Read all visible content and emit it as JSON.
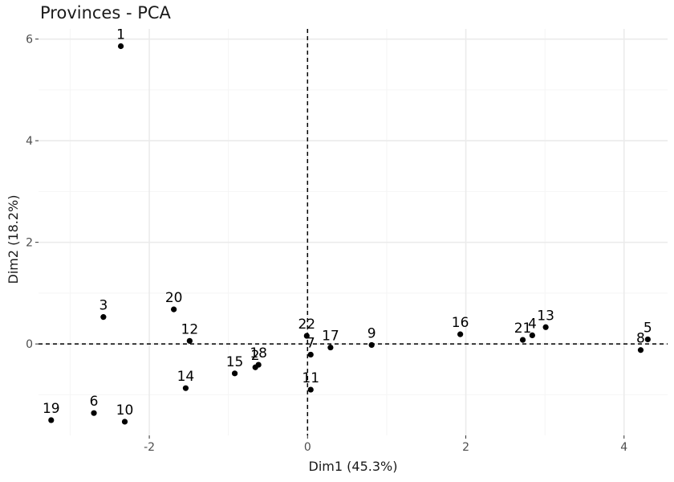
{
  "chart_data": {
    "type": "scatter",
    "title": "Provinces - PCA",
    "xlabel": "Dim1 (45.3%)",
    "ylabel": "Dim2 (18.2%)",
    "xlim": [
      -3.4,
      4.55
    ],
    "ylim": [
      -1.8,
      6.2
    ],
    "x_ticks": [
      -2,
      0,
      2,
      4
    ],
    "y_ticks": [
      0,
      2,
      4,
      6
    ],
    "x_tick_labels": [
      "-2",
      "0",
      "2",
      "4"
    ],
    "y_tick_labels": [
      "0",
      "2",
      "4",
      "6"
    ],
    "grid": true,
    "reference_lines": {
      "x": 0,
      "y": 0,
      "style": "dashed"
    },
    "colors": {
      "point": "#000000",
      "grid_major": "#ebebeb",
      "grid_minor": "#f5f5f5"
    },
    "points": [
      {
        "label": "1",
        "x": -2.36,
        "y": 5.86
      },
      {
        "label": "2",
        "x": -0.66,
        "y": -0.46
      },
      {
        "label": "3",
        "x": -2.58,
        "y": 0.53
      },
      {
        "label": "4",
        "x": 2.84,
        "y": 0.17
      },
      {
        "label": "5",
        "x": 4.3,
        "y": 0.09
      },
      {
        "label": "6",
        "x": -2.7,
        "y": -1.36
      },
      {
        "label": "7",
        "x": 0.04,
        "y": -0.21
      },
      {
        "label": "8",
        "x": 4.21,
        "y": -0.12
      },
      {
        "label": "9",
        "x": 0.81,
        "y": -0.02
      },
      {
        "label": "10",
        "x": -2.31,
        "y": -1.53
      },
      {
        "label": "11",
        "x": 0.04,
        "y": -0.9
      },
      {
        "label": "12",
        "x": -1.49,
        "y": 0.06
      },
      {
        "label": "13",
        "x": 3.01,
        "y": 0.33
      },
      {
        "label": "14",
        "x": -1.54,
        "y": -0.87
      },
      {
        "label": "15",
        "x": -0.92,
        "y": -0.58
      },
      {
        "label": "16",
        "x": 1.93,
        "y": 0.19
      },
      {
        "label": "17",
        "x": 0.29,
        "y": -0.07
      },
      {
        "label": "18",
        "x": -0.62,
        "y": -0.41
      },
      {
        "label": "19",
        "x": -3.24,
        "y": -1.5
      },
      {
        "label": "20",
        "x": -1.69,
        "y": 0.68
      },
      {
        "label": "21",
        "x": 2.72,
        "y": 0.08
      },
      {
        "label": "22",
        "x": -0.01,
        "y": 0.16
      }
    ]
  }
}
